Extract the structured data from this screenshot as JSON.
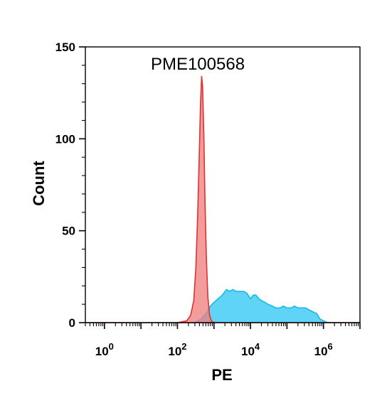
{
  "chart_data": {
    "type": "area",
    "title": "PME100568",
    "xlabel": "PE",
    "ylabel": "Count",
    "xscale": "log",
    "xlim": [
      0.3,
      10000000
    ],
    "ylim": [
      0,
      150
    ],
    "x_ticks": [
      {
        "value": 1,
        "base": "10",
        "exp": "0"
      },
      {
        "value": 100,
        "base": "10",
        "exp": "2"
      },
      {
        "value": 10000,
        "base": "10",
        "exp": "4"
      },
      {
        "value": 1000000,
        "base": "10",
        "exp": "6"
      }
    ],
    "y_ticks": [
      {
        "value": 0,
        "label": "0"
      },
      {
        "value": 50,
        "label": "50"
      },
      {
        "value": 100,
        "label": "100"
      },
      {
        "value": 150,
        "label": "150"
      }
    ],
    "grid": false,
    "series": [
      {
        "color": "#f08080",
        "stroke": "#e03030",
        "points": [
          [
            0.3,
            0
          ],
          [
            100,
            0
          ],
          [
            180,
            1
          ],
          [
            230,
            4
          ],
          [
            280,
            12
          ],
          [
            320,
            30
          ],
          [
            360,
            60
          ],
          [
            400,
            95
          ],
          [
            430,
            120
          ],
          [
            460,
            134
          ],
          [
            490,
            128
          ],
          [
            530,
            100
          ],
          [
            570,
            65
          ],
          [
            620,
            35
          ],
          [
            680,
            14
          ],
          [
            760,
            4
          ],
          [
            850,
            1
          ],
          [
            1000,
            0
          ],
          [
            10000000,
            0
          ]
        ]
      },
      {
        "color": "#56d2f5",
        "stroke": "#16b8e8",
        "points": [
          [
            0.3,
            0
          ],
          [
            300,
            0
          ],
          [
            450,
            2
          ],
          [
            600,
            5
          ],
          [
            800,
            9
          ],
          [
            1000,
            11
          ],
          [
            1300,
            13
          ],
          [
            1700,
            15
          ],
          [
            2200,
            18
          ],
          [
            2700,
            17
          ],
          [
            3300,
            18
          ],
          [
            4000,
            17
          ],
          [
            5000,
            17
          ],
          [
            6500,
            17
          ],
          [
            8000,
            16
          ],
          [
            10000,
            13
          ],
          [
            12000,
            15
          ],
          [
            14000,
            15
          ],
          [
            17000,
            13
          ],
          [
            20000,
            12
          ],
          [
            25000,
            11
          ],
          [
            30000,
            10
          ],
          [
            40000,
            9
          ],
          [
            50000,
            8
          ],
          [
            65000,
            8
          ],
          [
            80000,
            9
          ],
          [
            100000,
            8
          ],
          [
            130000,
            8
          ],
          [
            160000,
            9
          ],
          [
            200000,
            8
          ],
          [
            250000,
            8
          ],
          [
            320000,
            8
          ],
          [
            400000,
            7
          ],
          [
            500000,
            6
          ],
          [
            650000,
            5
          ],
          [
            800000,
            2
          ],
          [
            1000000,
            1
          ],
          [
            1300000,
            0
          ],
          [
            10000000,
            0
          ]
        ]
      }
    ]
  }
}
